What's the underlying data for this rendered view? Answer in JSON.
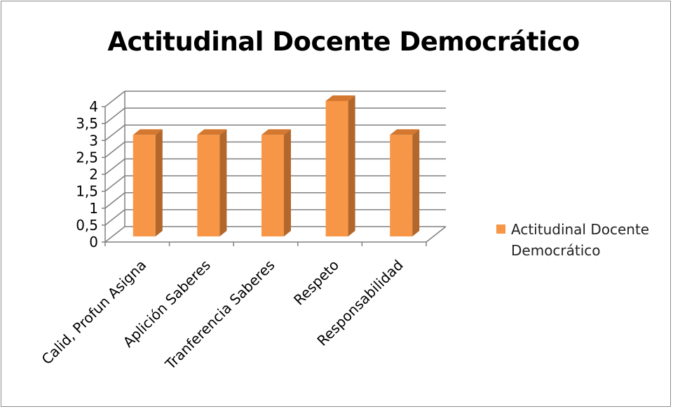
{
  "chart_data": {
    "type": "bar",
    "title": "Actitudinal Docente Democrático",
    "categories": [
      "Calid, Profun Asigna",
      "Aplición Saberes",
      "Tranferencia Saberes",
      "Respeto",
      "Responsabilidad"
    ],
    "series": [
      {
        "name": "Actitudinal Docente Democrático",
        "values": [
          3,
          3,
          3,
          4,
          3
        ]
      }
    ],
    "ylim": [
      0,
      4
    ],
    "yticks": [
      "0",
      "0,5",
      "1",
      "1,5",
      "2",
      "2,5",
      "3",
      "3,5",
      "4"
    ],
    "grid": true,
    "legend": "right",
    "colors": {
      "bar_front": "#F79646",
      "bar_side": "#B3672A",
      "bar_top": "#D5782F",
      "grid": "#808080"
    }
  }
}
